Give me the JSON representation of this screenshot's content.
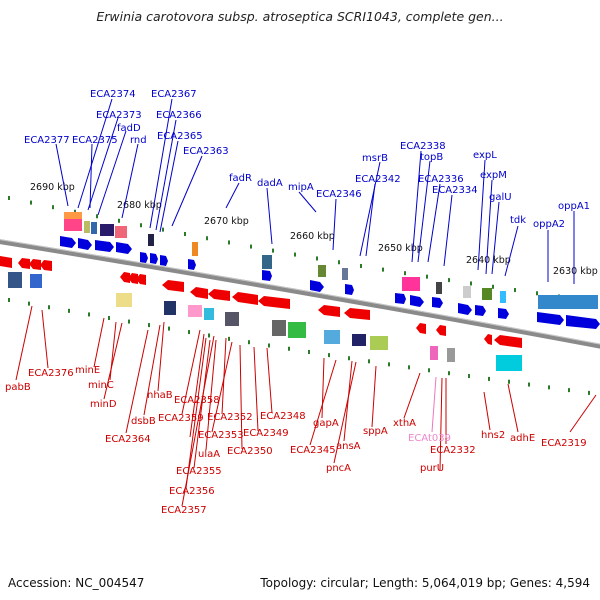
{
  "title": "Erwinia carotovora subsp. atroseptica SCRI1043, complete gen...",
  "accession_text": "Accession: NC_004547",
  "topology_text": "Topology: circular; Length: 5,064,019 bp; Genes: 4,594",
  "colors": {
    "top_genes": "#0000cc",
    "bottom_genes": "#cc0000",
    "highlight": "#ee77bb",
    "backbone": "#888888",
    "tick": "#2a7a2a"
  },
  "ticks": [
    "2690 kbp",
    "2680 kbp",
    "2670 kbp",
    "2660 kbp",
    "2650 kbp",
    "2640 kbp",
    "2630 kbp"
  ],
  "top_genes": [
    "ECA2374",
    "ECA2373",
    "fadD",
    "ECA2377",
    "ECA2375",
    "rnd",
    "ECA2367",
    "ECA2366",
    "ECA2365",
    "ECA2363",
    "fadR",
    "dadA",
    "mipA",
    "ECA2346",
    "msrB",
    "ECA2342",
    "ECA2338",
    "topB",
    "ECA2336",
    "ECA2334",
    "expL",
    "expM",
    "galU",
    "tdk",
    "oppA2",
    "oppA1"
  ],
  "bottom_genes": [
    "pabB",
    "ECA2376",
    "minE",
    "minC",
    "minD",
    "dsbB",
    "nhaB",
    "ECA2364",
    "ECA2358",
    "ECA2359",
    "ulaA",
    "ECA2352",
    "ECA2353",
    "ECA2355",
    "ECA2356",
    "ECA2357",
    "ECA2350",
    "ECA2349",
    "ECA2348",
    "gapA",
    "ECA2345",
    "ansA",
    "pncA",
    "sppA",
    "xthA",
    "ECAt039",
    "purU",
    "ECA2332",
    "hns2",
    "adhE",
    "ECA2319"
  ]
}
